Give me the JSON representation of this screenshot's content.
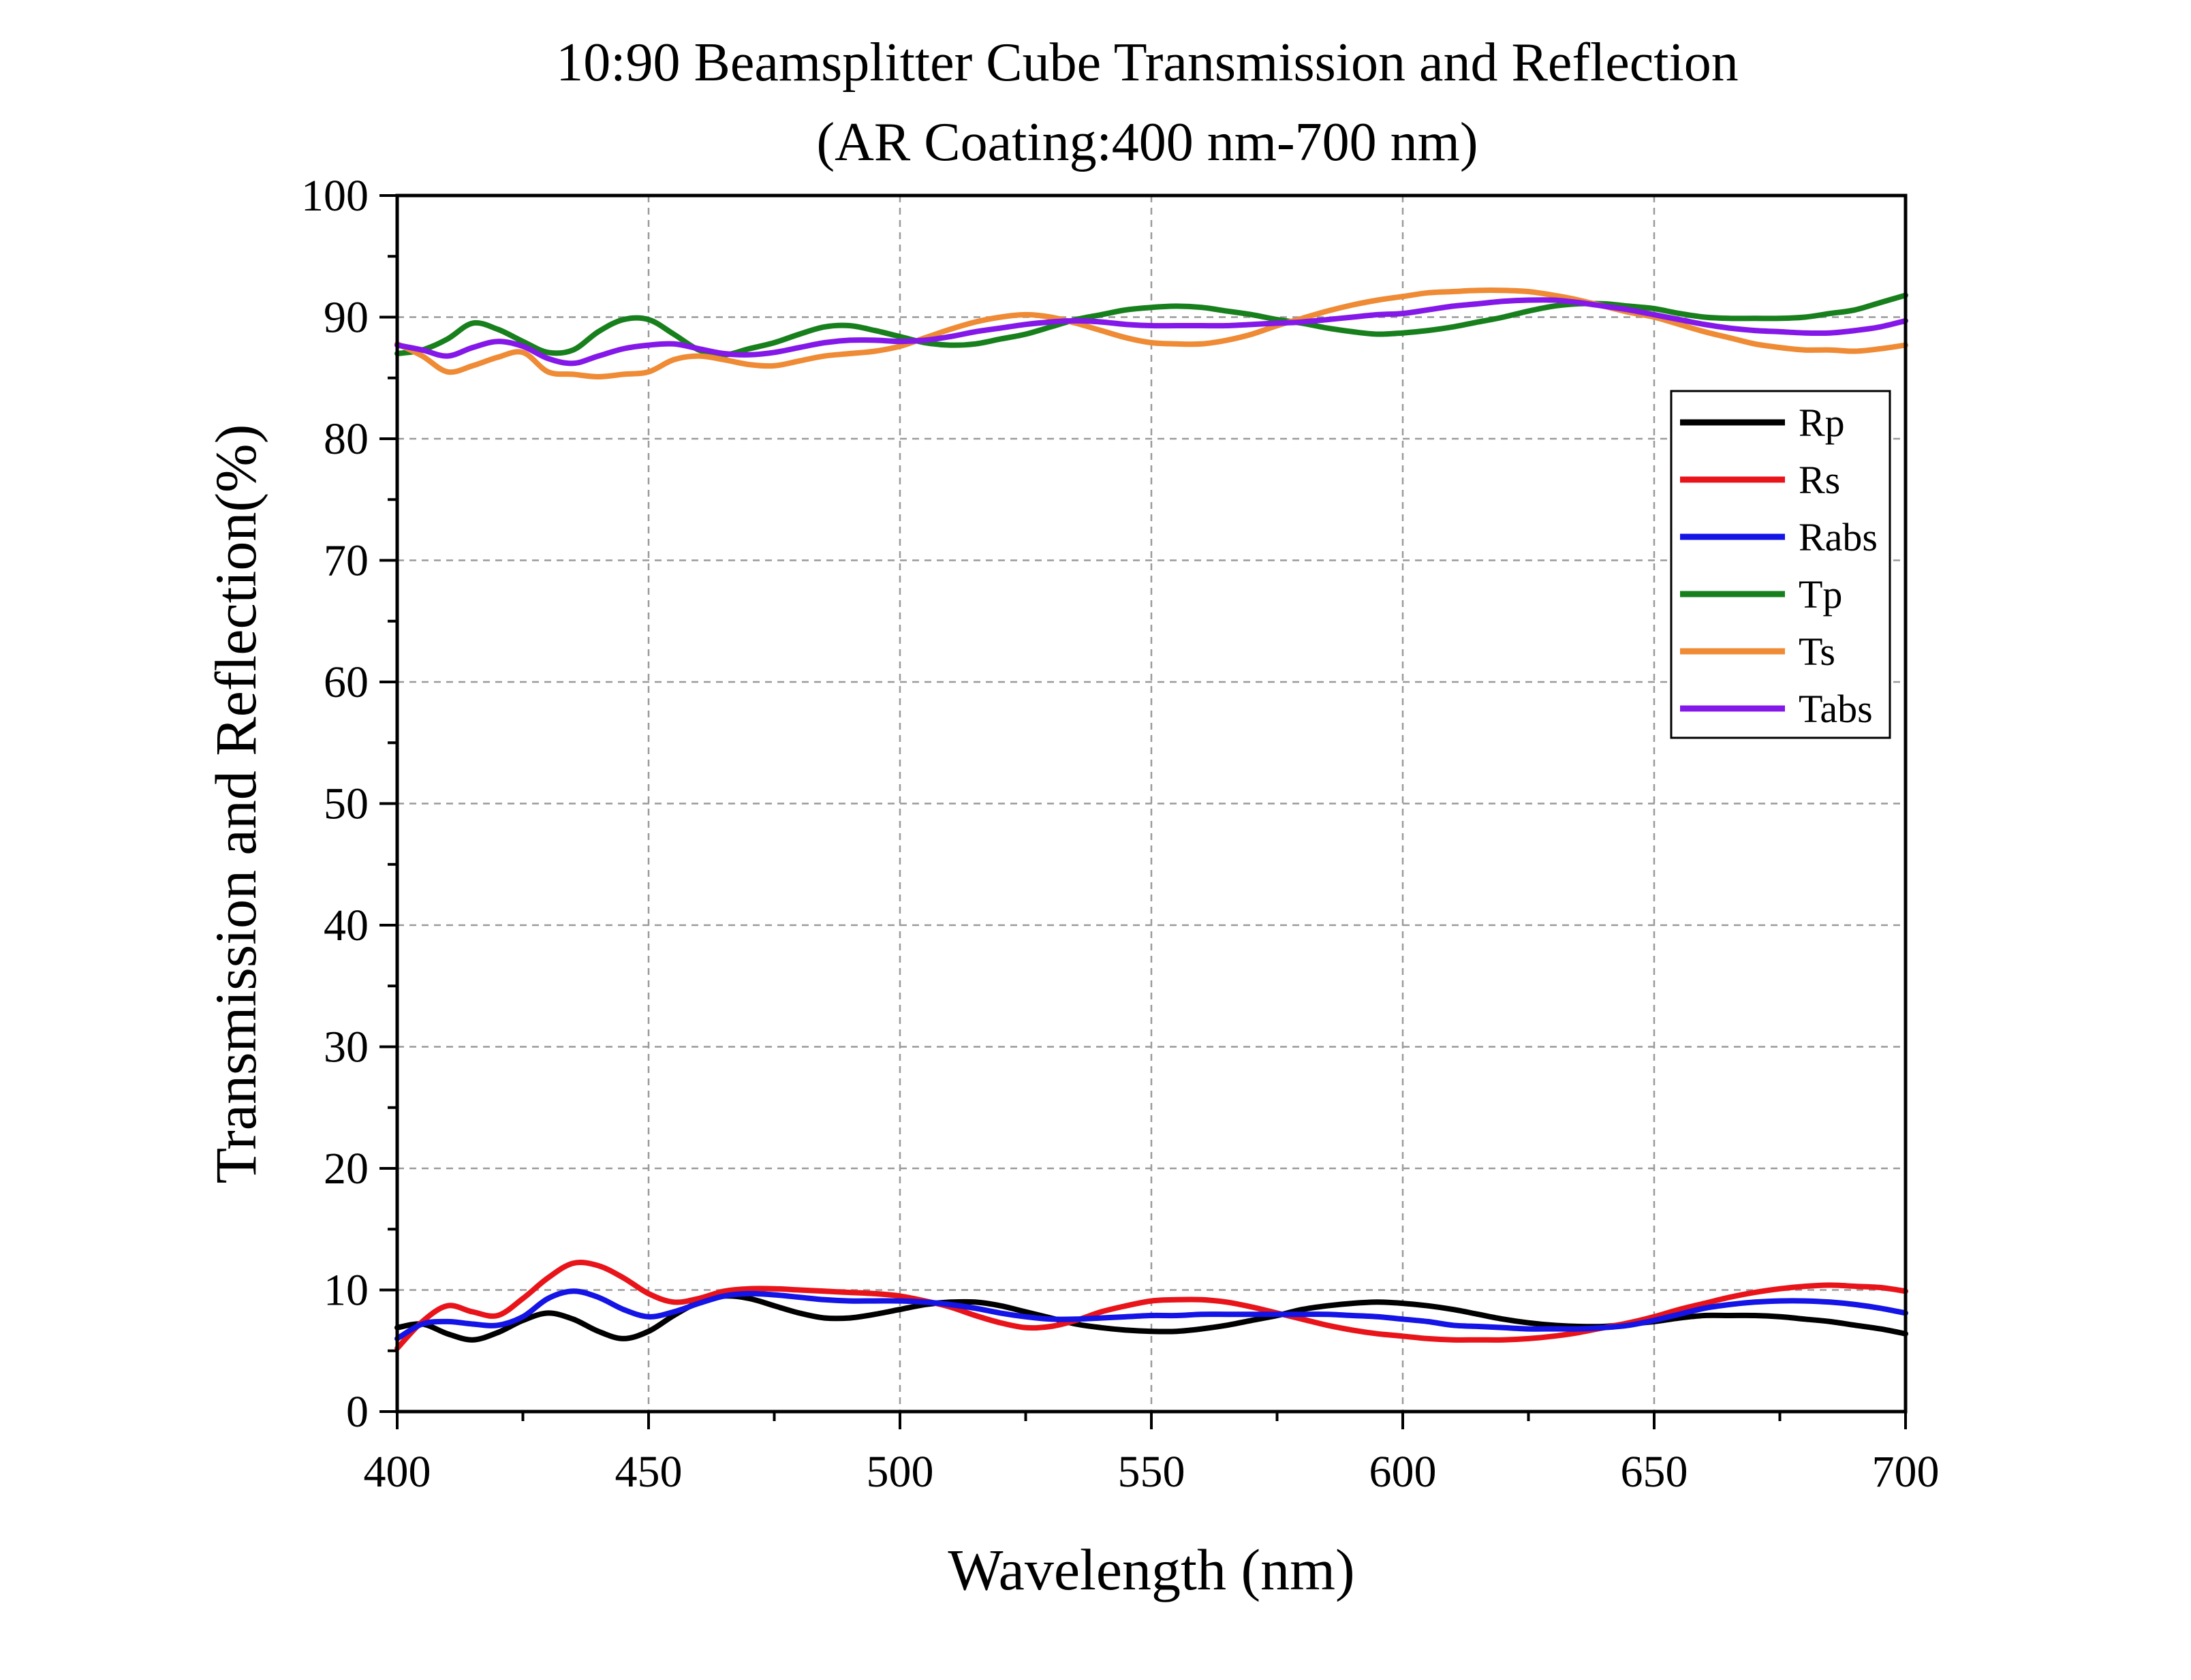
{
  "chart_data": {
    "type": "line",
    "title": "10:90 Beamsplitter Cube Transmission and Reflection",
    "subtitle": "(AR Coating:400 nm-700 nm)",
    "xlabel": "Wavelength (nm)",
    "ylabel": "Transmission and Reflection(%)",
    "xlim": [
      400,
      700
    ],
    "ylim": [
      0,
      100
    ],
    "xticks": [
      400,
      450,
      500,
      550,
      600,
      650,
      700
    ],
    "yticks": [
      0,
      10,
      20,
      30,
      40,
      50,
      60,
      70,
      80,
      90,
      100
    ],
    "grid": true,
    "legend_position": "top-right",
    "x": [
      400,
      405,
      410,
      415,
      420,
      425,
      430,
      435,
      440,
      445,
      450,
      455,
      460,
      465,
      470,
      475,
      480,
      485,
      490,
      495,
      500,
      505,
      510,
      515,
      520,
      525,
      530,
      535,
      540,
      545,
      550,
      555,
      560,
      565,
      570,
      575,
      580,
      585,
      590,
      595,
      600,
      605,
      610,
      615,
      620,
      625,
      630,
      635,
      640,
      645,
      650,
      655,
      660,
      665,
      670,
      675,
      680,
      685,
      690,
      695,
      700
    ],
    "series": [
      {
        "name": "Rp",
        "color": "#000000",
        "values": [
          6.9,
          7.2,
          6.4,
          5.9,
          6.5,
          7.5,
          8.1,
          7.6,
          6.6,
          6.0,
          6.6,
          7.9,
          9.0,
          9.5,
          9.3,
          8.7,
          8.1,
          7.7,
          7.7,
          8.0,
          8.4,
          8.8,
          9.0,
          9.0,
          8.7,
          8.2,
          7.7,
          7.2,
          6.9,
          6.7,
          6.6,
          6.6,
          6.8,
          7.1,
          7.5,
          7.9,
          8.4,
          8.7,
          8.9,
          9.0,
          8.9,
          8.7,
          8.4,
          8.0,
          7.6,
          7.3,
          7.1,
          7.0,
          7.0,
          7.2,
          7.4,
          7.7,
          7.9,
          7.9,
          7.9,
          7.8,
          7.6,
          7.4,
          7.1,
          6.8,
          6.4
        ]
      },
      {
        "name": "Rs",
        "color": "#e8141a",
        "values": [
          5.2,
          7.4,
          8.7,
          8.2,
          7.9,
          9.3,
          11.0,
          12.2,
          12.0,
          11.0,
          9.7,
          9.0,
          9.3,
          9.9,
          10.1,
          10.1,
          10.0,
          9.9,
          9.8,
          9.7,
          9.5,
          9.1,
          8.6,
          7.9,
          7.3,
          6.9,
          7.0,
          7.5,
          8.2,
          8.7,
          9.1,
          9.2,
          9.2,
          9.0,
          8.6,
          8.1,
          7.6,
          7.1,
          6.7,
          6.4,
          6.2,
          6.0,
          5.9,
          5.9,
          5.9,
          6.0,
          6.2,
          6.5,
          6.9,
          7.3,
          7.8,
          8.4,
          8.9,
          9.4,
          9.8,
          10.1,
          10.3,
          10.4,
          10.3,
          10.2,
          9.9
        ]
      },
      {
        "name": "Rabs",
        "color": "#1414e6",
        "values": [
          6.0,
          7.2,
          7.4,
          7.2,
          7.1,
          7.8,
          9.3,
          9.9,
          9.4,
          8.4,
          7.8,
          8.2,
          8.9,
          9.5,
          9.7,
          9.6,
          9.4,
          9.2,
          9.1,
          9.1,
          9.1,
          9.0,
          8.8,
          8.5,
          8.1,
          7.8,
          7.6,
          7.6,
          7.7,
          7.8,
          7.9,
          7.9,
          8.0,
          8.0,
          8.0,
          8.0,
          8.0,
          8.0,
          7.9,
          7.8,
          7.6,
          7.4,
          7.1,
          7.0,
          6.9,
          6.8,
          6.8,
          6.8,
          6.9,
          7.1,
          7.5,
          8.0,
          8.5,
          8.8,
          9.0,
          9.1,
          9.1,
          9.0,
          8.8,
          8.5,
          8.1
        ]
      },
      {
        "name": "Tp",
        "color": "#17801c",
        "values": [
          87.0,
          87.3,
          88.2,
          89.5,
          89.0,
          88.0,
          87.1,
          87.3,
          88.8,
          89.8,
          89.8,
          88.6,
          87.3,
          86.9,
          87.4,
          87.9,
          88.6,
          89.2,
          89.3,
          88.9,
          88.4,
          87.9,
          87.7,
          87.8,
          88.2,
          88.6,
          89.2,
          89.8,
          90.2,
          90.6,
          90.8,
          90.9,
          90.8,
          90.5,
          90.2,
          89.8,
          89.5,
          89.1,
          88.8,
          88.6,
          88.7,
          88.9,
          89.2,
          89.6,
          90.0,
          90.5,
          90.9,
          91.1,
          91.1,
          90.9,
          90.7,
          90.3,
          90.0,
          89.9,
          89.9,
          89.9,
          90.0,
          90.3,
          90.6,
          91.2,
          91.8
        ]
      },
      {
        "name": "Ts",
        "color": "#ef8a35",
        "values": [
          87.8,
          86.8,
          85.5,
          86.0,
          86.7,
          87.1,
          85.5,
          85.3,
          85.1,
          85.3,
          85.5,
          86.5,
          86.8,
          86.5,
          86.1,
          86.0,
          86.4,
          86.8,
          87.0,
          87.2,
          87.6,
          88.3,
          89.0,
          89.6,
          90.0,
          90.2,
          90.0,
          89.5,
          88.9,
          88.3,
          87.9,
          87.8,
          87.8,
          88.1,
          88.6,
          89.3,
          89.9,
          90.5,
          91.0,
          91.4,
          91.7,
          92.0,
          92.1,
          92.2,
          92.2,
          92.1,
          91.8,
          91.4,
          90.9,
          90.4,
          90.0,
          89.4,
          88.8,
          88.3,
          87.8,
          87.5,
          87.3,
          87.3,
          87.2,
          87.4,
          87.7
        ]
      },
      {
        "name": "Tabs",
        "color": "#8418e8",
        "values": [
          87.7,
          87.3,
          86.8,
          87.5,
          88.0,
          87.6,
          86.6,
          86.2,
          86.8,
          87.4,
          87.7,
          87.8,
          87.4,
          87.0,
          86.9,
          87.1,
          87.5,
          87.9,
          88.1,
          88.1,
          88.0,
          88.1,
          88.4,
          88.8,
          89.1,
          89.4,
          89.6,
          89.7,
          89.6,
          89.4,
          89.3,
          89.3,
          89.3,
          89.3,
          89.4,
          89.5,
          89.6,
          89.8,
          90.0,
          90.2,
          90.3,
          90.6,
          90.9,
          91.1,
          91.3,
          91.4,
          91.4,
          91.2,
          90.9,
          90.6,
          90.2,
          89.8,
          89.4,
          89.1,
          88.9,
          88.8,
          88.7,
          88.7,
          88.9,
          89.2,
          89.7
        ]
      }
    ]
  }
}
